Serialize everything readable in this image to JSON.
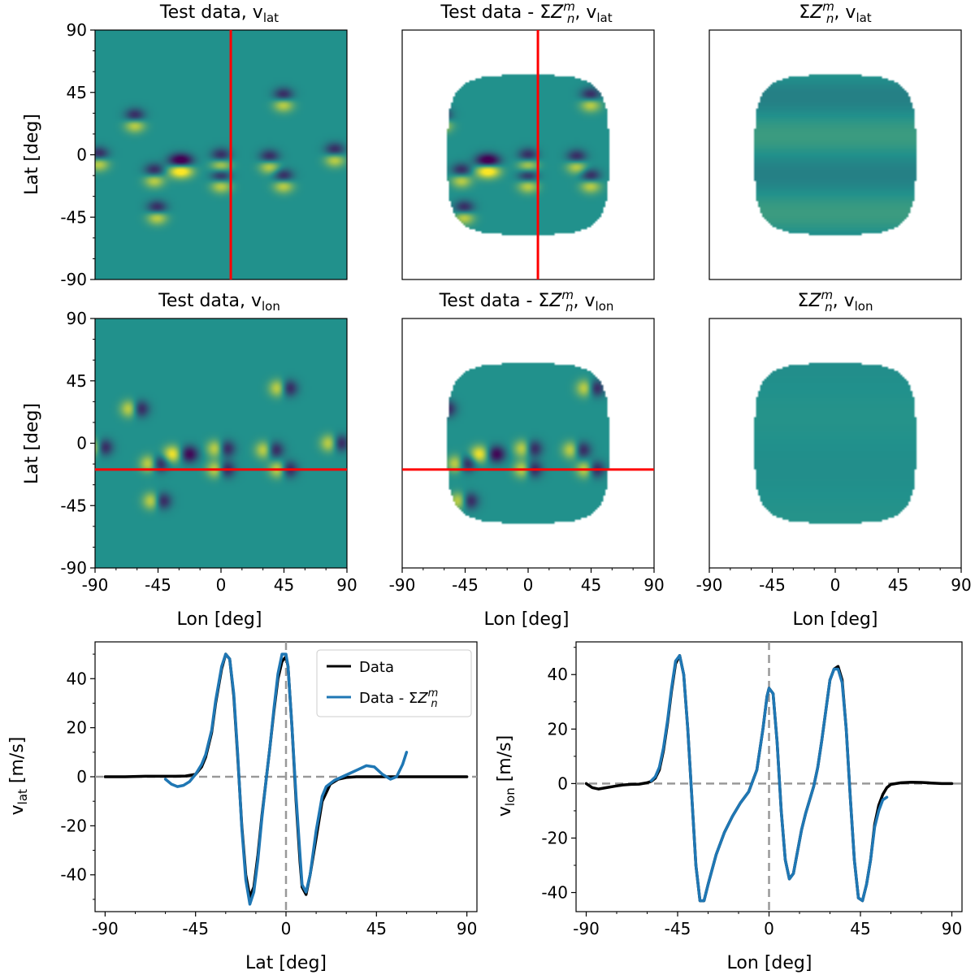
{
  "chart_data": [
    {
      "type": "heatmap",
      "id": "p1",
      "title": "Test data, v_lat",
      "title_parts": {
        "main": "Test data, v",
        "sub": "lat"
      },
      "ylabel": "Lat [deg]",
      "xlabel": "",
      "xlim": [
        -90,
        90
      ],
      "ylim": [
        -90,
        90
      ],
      "yticks": [
        "90",
        "45",
        "0",
        "-45",
        "-90"
      ],
      "xticks": [],
      "domain": "full",
      "component": "lat",
      "cut_line": {
        "orientation": "vertical",
        "lon": 7
      }
    },
    {
      "type": "heatmap",
      "id": "p2",
      "title": "Test data - ΣZnm, v_lat",
      "title_parts": {
        "main": "Test data - Σ",
        "sym": "Z",
        "sup": "m",
        "subsym": "n",
        "tail": ", v",
        "sub": "lat"
      },
      "xlim": [
        -90,
        90
      ],
      "ylim": [
        -90,
        90
      ],
      "yticks": [],
      "xticks": [],
      "domain": "disk",
      "component": "lat",
      "cut_line": {
        "orientation": "vertical",
        "lon": 7
      }
    },
    {
      "type": "heatmap",
      "id": "p3",
      "title": "ΣZnm, v_lat",
      "title_parts": {
        "main": "Σ",
        "sym": "Z",
        "sup": "m",
        "subsym": "n",
        "tail": ", v",
        "sub": "lat"
      },
      "xlim": [
        -90,
        90
      ],
      "ylim": [
        -90,
        90
      ],
      "yticks": [],
      "xticks": [],
      "domain": "disk",
      "component": "fit_lat"
    },
    {
      "type": "heatmap",
      "id": "p4",
      "title": "Test data, v_lon",
      "title_parts": {
        "main": "Test data, v",
        "sub": "lon"
      },
      "ylabel": "Lat [deg]",
      "xlabel": "Lon [deg]",
      "xlim": [
        -90,
        90
      ],
      "ylim": [
        -90,
        90
      ],
      "yticks": [
        "90",
        "45",
        "0",
        "-45",
        "-90"
      ],
      "xticks": [
        "-90",
        "-45",
        "0",
        "45",
        "90"
      ],
      "domain": "full",
      "component": "lon",
      "cut_line": {
        "orientation": "horizontal",
        "lat": -19
      }
    },
    {
      "type": "heatmap",
      "id": "p5",
      "title": "Test data - ΣZnm, v_lon",
      "title_parts": {
        "main": "Test data - Σ",
        "sym": "Z",
        "sup": "m",
        "subsym": "n",
        "tail": ", v",
        "sub": "lon"
      },
      "xlabel": "Lon [deg]",
      "xlim": [
        -90,
        90
      ],
      "ylim": [
        -90,
        90
      ],
      "yticks": [],
      "xticks": [
        "-90",
        "-45",
        "0",
        "45",
        "90"
      ],
      "domain": "disk",
      "component": "lon",
      "cut_line": {
        "orientation": "horizontal",
        "lat": -19
      }
    },
    {
      "type": "heatmap",
      "id": "p6",
      "title": "ΣZnm, v_lon",
      "title_parts": {
        "main": "Σ",
        "sym": "Z",
        "sup": "m",
        "subsym": "n",
        "tail": ", v",
        "sub": "lon"
      },
      "xlabel": "Lon [deg]",
      "xlim": [
        -90,
        90
      ],
      "ylim": [
        -90,
        90
      ],
      "yticks": [],
      "xticks": [
        "-90",
        "-45",
        "0",
        "45",
        "90"
      ],
      "domain": "disk",
      "component": "fit_lon"
    },
    {
      "type": "line",
      "id": "p7",
      "xlabel": "Lat [deg]",
      "ylabel": "v_lat [m/s]",
      "ylabel_parts": {
        "main": "v",
        "sub": "lat",
        "tail": " [m/s]"
      },
      "xlim": [
        -95,
        95
      ],
      "ylim": [
        -55,
        55
      ],
      "xticks": [
        "-90",
        "-45",
        "0",
        "45",
        "90"
      ],
      "xtick_values": [
        -90,
        -45,
        0,
        45,
        90
      ],
      "yticks": [
        "40",
        "20",
        "0",
        "-20",
        "-40"
      ],
      "ytick_values": [
        40,
        20,
        0,
        -20,
        -40
      ],
      "reference_lines": [
        {
          "axis": "y",
          "value": 0
        },
        {
          "axis": "x",
          "value": 0
        }
      ],
      "legend": {
        "position": "top-right"
      },
      "series": [
        {
          "name": "Data",
          "legend_parts": {
            "main": "Data"
          },
          "color": "#000000",
          "x": [
            -90,
            -80,
            -70,
            -60,
            -55,
            -50,
            -45,
            -42,
            -40,
            -37,
            -35,
            -32,
            -30,
            -28,
            -26,
            -24,
            -22,
            -20,
            -18,
            -16,
            -14,
            -12,
            -10,
            -8,
            -6,
            -4,
            -2,
            0,
            1,
            3,
            5,
            7,
            8,
            10,
            12,
            15,
            18,
            22,
            26,
            30,
            35,
            40,
            50,
            60,
            70,
            80,
            90
          ],
          "values": [
            0,
            0,
            0.2,
            0.2,
            0.2,
            0.3,
            1,
            4,
            8,
            18,
            30,
            44,
            50,
            48,
            33,
            8,
            -20,
            -40,
            -49,
            -45,
            -32,
            -16,
            -2,
            12,
            27,
            40,
            47,
            49,
            45,
            20,
            -10,
            -35,
            -45,
            -48,
            -40,
            -25,
            -10,
            -3,
            -1,
            -0.3,
            0,
            0,
            0,
            0,
            0,
            0,
            0
          ]
        },
        {
          "name": "Data - ΣZnm",
          "legend_parts": {
            "main": "Data - Σ",
            "sym": "Z",
            "sup": "m",
            "subsym": "n"
          },
          "color": "#1f77b4",
          "x": [
            -60,
            -57,
            -54,
            -51,
            -48,
            -45,
            -42,
            -40,
            -37,
            -35,
            -32,
            -30,
            -28,
            -26,
            -24,
            -22,
            -20,
            -18,
            -16,
            -14,
            -12,
            -10,
            -8,
            -6,
            -4,
            -2,
            0,
            1,
            3,
            5,
            7,
            8,
            10,
            12,
            15,
            18,
            20,
            24,
            28,
            32,
            36,
            40,
            44,
            48,
            52,
            55,
            58,
            60
          ],
          "values": [
            -1,
            -3,
            -4,
            -3.5,
            -2,
            1,
            5,
            9,
            19,
            31,
            45,
            50,
            48,
            34,
            9,
            -21,
            -42,
            -52,
            -47,
            -34,
            -17,
            -2,
            12,
            28,
            42,
            50,
            50,
            45,
            20,
            -8,
            -32,
            -44,
            -47,
            -40,
            -22,
            -8,
            -4,
            -1.5,
            0,
            1.5,
            3,
            4.5,
            4,
            1,
            -1,
            0,
            5,
            10
          ]
        }
      ]
    },
    {
      "type": "line",
      "id": "p8",
      "xlabel": "Lon [deg]",
      "ylabel": "v_lon [m/s]",
      "ylabel_parts": {
        "main": "v",
        "sub": "lon",
        "tail": " [m/s]"
      },
      "xlim": [
        -95,
        95
      ],
      "ylim": [
        -47,
        52
      ],
      "xticks": [
        "-90",
        "-45",
        "0",
        "45",
        "90"
      ],
      "xtick_values": [
        -90,
        -45,
        0,
        45,
        90
      ],
      "yticks": [
        "40",
        "20",
        "0",
        "-20",
        "-40"
      ],
      "ytick_values": [
        40,
        20,
        0,
        -20,
        -40
      ],
      "reference_lines": [
        {
          "axis": "y",
          "value": 0
        },
        {
          "axis": "x",
          "value": 0
        }
      ],
      "series": [
        {
          "name": "Data",
          "color": "#000000",
          "x": [
            -90,
            -87,
            -84,
            -80,
            -76,
            -72,
            -68,
            -64,
            -60,
            -58,
            -56,
            -54,
            -52,
            -50,
            -48,
            -46,
            -44,
            -42,
            -40,
            -38,
            -36,
            -34,
            -32,
            -30,
            -26,
            -22,
            -18,
            -14,
            -10,
            -6,
            -3,
            -1,
            0,
            2,
            4,
            6,
            8,
            10,
            12,
            14,
            16,
            18,
            20,
            22,
            24,
            26,
            28,
            30,
            32,
            34,
            36,
            38,
            40,
            42,
            44,
            46,
            48,
            50,
            52,
            54,
            56,
            58,
            60,
            65,
            70,
            75,
            80,
            85,
            90
          ],
          "values": [
            0,
            -1.5,
            -2,
            -1.5,
            -1,
            -0.5,
            -0.3,
            -0.2,
            0.3,
            0.8,
            2,
            5,
            12,
            22,
            34,
            44,
            47,
            40,
            20,
            -5,
            -30,
            -43,
            -43,
            -37,
            -26,
            -18,
            -12,
            -7,
            -3,
            5,
            20,
            32,
            35,
            33,
            15,
            -10,
            -28,
            -35,
            -33,
            -25,
            -17,
            -11,
            -6,
            -1,
            6,
            16,
            27,
            38,
            42,
            43,
            38,
            20,
            -5,
            -28,
            -42,
            -43,
            -37,
            -28,
            -15,
            -8,
            -4,
            -1.5,
            -0.3,
            0.3,
            0.5,
            0.4,
            0.2,
            0,
            0
          ]
        },
        {
          "name": "Data - ΣZnm",
          "color": "#1f77b4",
          "x": [
            -58,
            -56,
            -54,
            -52,
            -50,
            -48,
            -46,
            -44,
            -42,
            -40,
            -38,
            -36,
            -34,
            -32,
            -30,
            -26,
            -22,
            -18,
            -14,
            -10,
            -6,
            -3,
            -1,
            0,
            2,
            4,
            6,
            8,
            10,
            12,
            14,
            16,
            18,
            20,
            22,
            24,
            26,
            28,
            30,
            32,
            34,
            36,
            38,
            40,
            42,
            44,
            46,
            48,
            50,
            52,
            54,
            56,
            58
          ],
          "values": [
            1,
            2.5,
            6,
            13,
            23,
            35,
            45,
            47,
            40,
            20,
            -5,
            -30,
            -43,
            -43,
            -37,
            -26,
            -18,
            -12,
            -7,
            -3,
            5,
            20,
            32,
            35,
            33,
            15,
            -10,
            -28,
            -35,
            -33,
            -25,
            -17,
            -11,
            -6,
            -1,
            6,
            16,
            27,
            38,
            42,
            42,
            37,
            20,
            -5,
            -28,
            -42,
            -43,
            -37,
            -28,
            -16,
            -10,
            -6,
            -5
          ]
        }
      ]
    }
  ]
}
